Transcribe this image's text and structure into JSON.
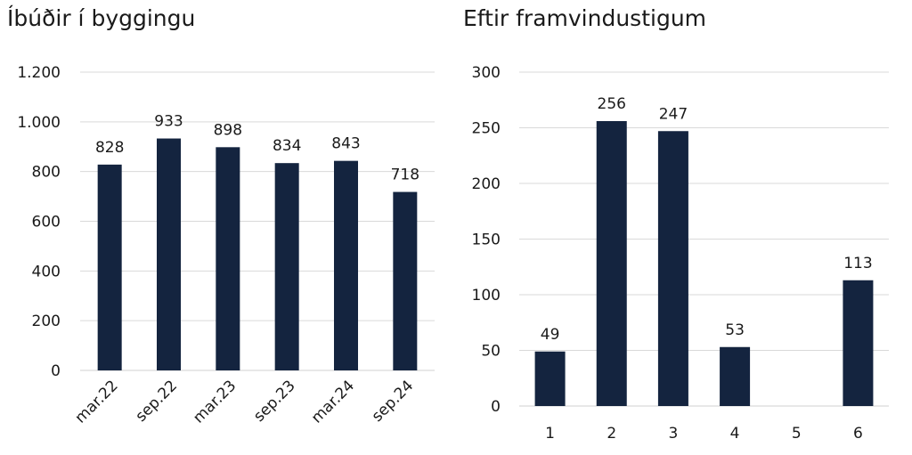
{
  "chart_data": [
    {
      "type": "bar",
      "title": "Íbúðir í byggingu",
      "categories": [
        "mar.22",
        "sep.22",
        "mar.23",
        "sep.23",
        "mar.24",
        "sep.24"
      ],
      "values": [
        828,
        933,
        898,
        834,
        843,
        718
      ],
      "data_labels": [
        "828",
        "933",
        "898",
        "834",
        "843",
        "718"
      ],
      "ylim": [
        0,
        1200
      ],
      "yticks": [
        0,
        200,
        400,
        600,
        800,
        1000,
        1200
      ],
      "ytick_labels": [
        "0",
        "200",
        "400",
        "600",
        "800",
        "1.000",
        "1.200"
      ],
      "xtick_rotation": -45,
      "grid": true,
      "bar_color": "#14243f"
    },
    {
      "type": "bar",
      "title": "Eftir framvindustigum",
      "categories": [
        "1",
        "2",
        "3",
        "4",
        "5",
        "6"
      ],
      "values": [
        49,
        256,
        247,
        53,
        null,
        113
      ],
      "data_labels": [
        "49",
        "256",
        "247",
        "53",
        "",
        "113"
      ],
      "ylim": [
        0,
        300
      ],
      "yticks": [
        0,
        50,
        100,
        150,
        200,
        250,
        300
      ],
      "ytick_labels": [
        "0",
        "50",
        "100",
        "150",
        "200",
        "250",
        "300"
      ],
      "xtick_rotation": 0,
      "grid": true,
      "bar_color": "#14243f"
    }
  ]
}
